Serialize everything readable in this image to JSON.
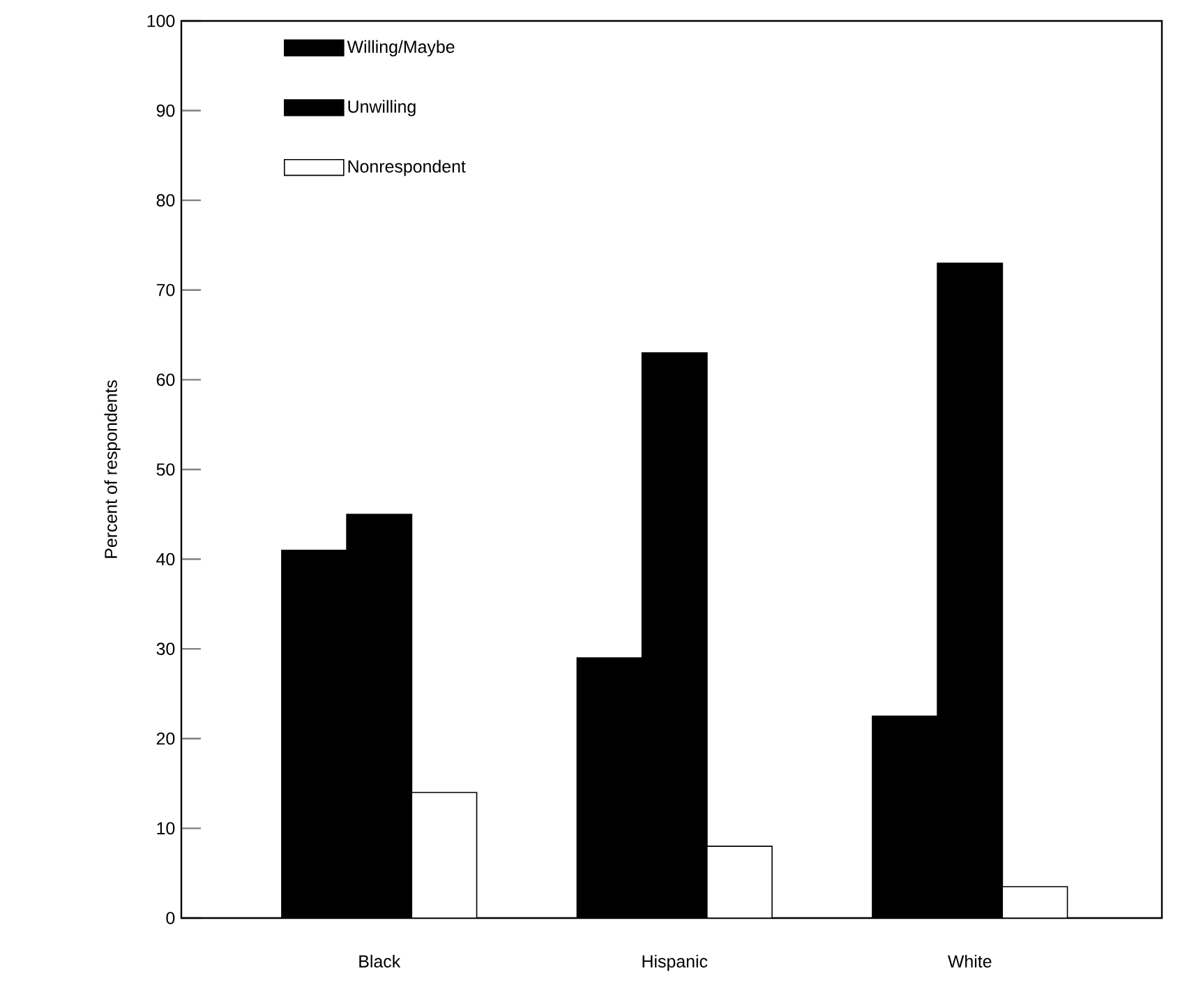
{
  "chart_data": {
    "type": "bar",
    "ylabel": "Percent of respondents",
    "categories": [
      "Black",
      "Hispanic",
      "White"
    ],
    "series": [
      {
        "name": "Willing/Maybe",
        "color": "#000000",
        "values": [
          41,
          29,
          22.5
        ]
      },
      {
        "name": "Unwilling",
        "color": "#000000",
        "values": [
          45,
          63,
          73
        ]
      },
      {
        "name": "Nonrespondent",
        "color": "#ffffff",
        "values": [
          14,
          8,
          3.5
        ]
      }
    ],
    "ylim": [
      0,
      100
    ],
    "yticks": [
      0,
      10,
      20,
      30,
      40,
      50,
      60,
      70,
      80,
      90,
      100
    ],
    "grid": false,
    "legend": "top left"
  }
}
